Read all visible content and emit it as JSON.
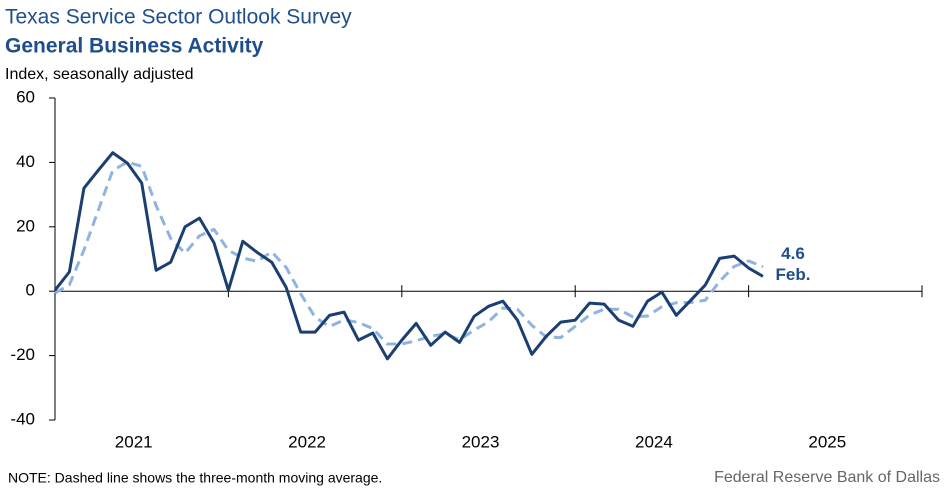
{
  "title": "Texas Service Sector Outlook Survey",
  "subtitle": "General Business Activity",
  "y_label": "Index, seasonally adjusted",
  "note": "NOTE: Dashed line shows the three-month  moving average.",
  "source": "Federal Reserve Bank of Dallas",
  "chart_data": {
    "type": "line",
    "x": [
      2021,
      2021.083,
      2021.167,
      2021.25,
      2021.333,
      2021.417,
      2021.5,
      2021.583,
      2021.667,
      2021.75,
      2021.833,
      2021.917,
      2022,
      2022.083,
      2022.167,
      2022.25,
      2022.333,
      2022.417,
      2022.5,
      2022.583,
      2022.667,
      2022.75,
      2022.833,
      2022.917,
      2023,
      2023.083,
      2023.167,
      2023.25,
      2023.333,
      2023.417,
      2023.5,
      2023.583,
      2023.667,
      2023.75,
      2023.833,
      2023.917,
      2024,
      2024.083,
      2024.167,
      2024.25,
      2024.333,
      2024.417,
      2024.5,
      2024.583,
      2024.667,
      2024.75,
      2024.833,
      2024.917,
      2025,
      2025.083
    ],
    "series": [
      {
        "color": "#1b3f73",
        "style": "solid",
        "values": [
          0.3,
          6,
          32,
          37.6,
          43,
          39.8,
          33.6,
          6.5,
          9,
          20,
          22.7,
          15,
          0.3,
          15.5,
          12,
          9,
          1.2,
          -12.7,
          -12.7,
          -7.5,
          -6.5,
          -15.2,
          -13,
          -21,
          -15.2,
          -10,
          -16.8,
          -12.7,
          -15.9,
          -7.8,
          -4.7,
          -3.1,
          -9,
          -19.6,
          -14,
          -9.6,
          -9,
          -3.7,
          -4,
          -9,
          -10.9,
          -3.1,
          -0.3,
          -7.5,
          -2.8,
          1.9,
          10.2,
          10.9,
          7.2,
          4.6
        ]
      },
      {
        "color": "#8fb4e0",
        "style": "dashed",
        "values": [
          -0.6,
          2,
          12.8,
          25.2,
          37.5,
          40.1,
          38.8,
          26.6,
          16.4,
          11.8,
          17.2,
          19.2,
          12.7,
          10.3,
          9.3,
          12.2,
          7.4,
          -0.8,
          -8.1,
          -11,
          -8.9,
          -9.7,
          -11.6,
          -16.4,
          -16.4,
          -15.4,
          -14,
          -13.2,
          -15.1,
          -12.1,
          -9.5,
          -5.2,
          -5.6,
          -10.6,
          -14.2,
          -14.4,
          -10.9,
          -7.4,
          -5.6,
          -5.6,
          -8,
          -7.7,
          -4.8,
          -3.6,
          -3.5,
          -2.8,
          3.1,
          7.7,
          9.4,
          7.6
        ]
      }
    ],
    "annotations": [
      "Feb."
    ],
    "xlim": [
      2021,
      2026
    ],
    "xticks": [
      2021,
      2022,
      2023,
      2024,
      2025
    ],
    "ylim": [
      -40,
      60
    ],
    "yticks": [
      -40,
      -20,
      0,
      20,
      40,
      60
    ]
  }
}
